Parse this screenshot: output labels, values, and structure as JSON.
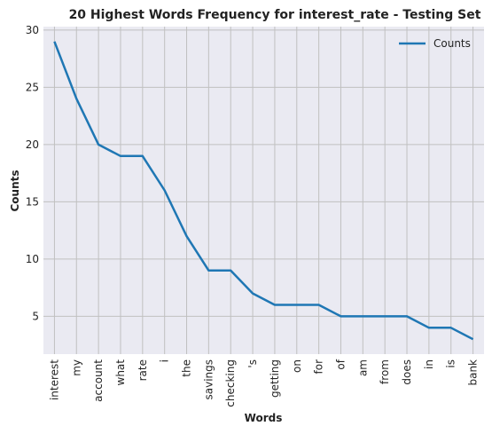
{
  "chart_data": {
    "type": "line",
    "title": "20 Highest Words Frequency for interest_rate - Testing Set",
    "xlabel": "Words",
    "ylabel": "Counts",
    "categories": [
      "interest",
      "my",
      "account",
      "what",
      "rate",
      "i",
      "the",
      "savings",
      "checking",
      "'s",
      "getting",
      "on",
      "for",
      "of",
      "am",
      "from",
      "does",
      "in",
      "is",
      "bank"
    ],
    "series": [
      {
        "name": "Counts",
        "values": [
          29,
          24,
          20,
          19,
          19,
          16,
          12,
          9,
          9,
          7,
          6,
          6,
          6,
          5,
          5,
          5,
          5,
          4,
          4,
          3
        ]
      }
    ],
    "ylim": [
      1.7,
      30.3
    ],
    "yticks": [
      5,
      10,
      15,
      20,
      25,
      30
    ],
    "grid": true,
    "legend": "top-right",
    "colors": {
      "line": "#1f77b4",
      "plot_bg": "#eaeaf2",
      "grid": "#c0c0c0"
    }
  }
}
